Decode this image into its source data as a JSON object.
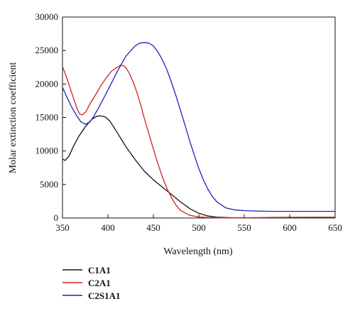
{
  "chart_data": {
    "type": "line",
    "title": "",
    "xlabel": "Wavelength (nm)",
    "ylabel": "Molar extinction coefficient",
    "xlim": [
      350,
      650
    ],
    "ylim": [
      0,
      30000
    ],
    "xticks": [
      350,
      400,
      450,
      500,
      550,
      600,
      650
    ],
    "yticks": [
      0,
      5000,
      10000,
      15000,
      20000,
      25000,
      30000
    ],
    "grid": false,
    "legend_position": "below",
    "series": [
      {
        "name": "C1A1",
        "color": "#111111",
        "x": [
          350,
          353,
          357,
          362,
          368,
          375,
          382,
          388,
          392,
          397,
          402,
          410,
          420,
          430,
          440,
          450,
          460,
          470,
          480,
          490,
          500,
          510,
          520,
          535,
          550,
          580,
          620,
          650
        ],
        "y": [
          8800,
          8600,
          9200,
          10700,
          12200,
          13600,
          14700,
          15200,
          15250,
          15100,
          14500,
          12800,
          10600,
          8700,
          7000,
          5700,
          4600,
          3500,
          2400,
          1400,
          700,
          300,
          120,
          50,
          20,
          10,
          10,
          10
        ]
      },
      {
        "name": "C2A1",
        "color": "#d42020",
        "x": [
          350,
          354,
          358,
          362,
          366,
          369,
          372,
          376,
          380,
          386,
          392,
          398,
          404,
          410,
          414,
          417,
          420,
          424,
          428,
          432,
          436,
          440,
          445,
          450,
          455,
          460,
          465,
          470,
          475,
          480,
          490,
          500,
          510,
          520,
          535,
          550,
          580,
          620,
          650
        ],
        "y": [
          22600,
          21200,
          19600,
          17900,
          16300,
          15500,
          15400,
          15900,
          17000,
          18300,
          19700,
          20900,
          21900,
          22500,
          22800,
          22750,
          22400,
          21500,
          20200,
          18700,
          16900,
          14900,
          12600,
          10300,
          8100,
          6100,
          4400,
          3000,
          1900,
          1100,
          400,
          150,
          70,
          40,
          30,
          40,
          80,
          120,
          120
        ]
      },
      {
        "name": "C2S1A1",
        "color": "#2020c0",
        "x": [
          350,
          355,
          360,
          365,
          370,
          375,
          380,
          385,
          390,
          400,
          410,
          420,
          430,
          435,
          440,
          445,
          450,
          455,
          460,
          465,
          470,
          475,
          480,
          485,
          490,
          495,
          500,
          505,
          510,
          515,
          520,
          530,
          540,
          550,
          560,
          580,
          600,
          620,
          650
        ],
        "y": [
          19500,
          18000,
          16600,
          15400,
          14400,
          14000,
          14300,
          15300,
          16500,
          19100,
          21800,
          24200,
          25700,
          26100,
          26200,
          26100,
          25700,
          24800,
          23600,
          22100,
          20200,
          18200,
          16000,
          13800,
          11500,
          9400,
          7400,
          5700,
          4300,
          3200,
          2400,
          1500,
          1200,
          1100,
          1050,
          1000,
          1000,
          1000,
          1000
        ]
      }
    ]
  }
}
